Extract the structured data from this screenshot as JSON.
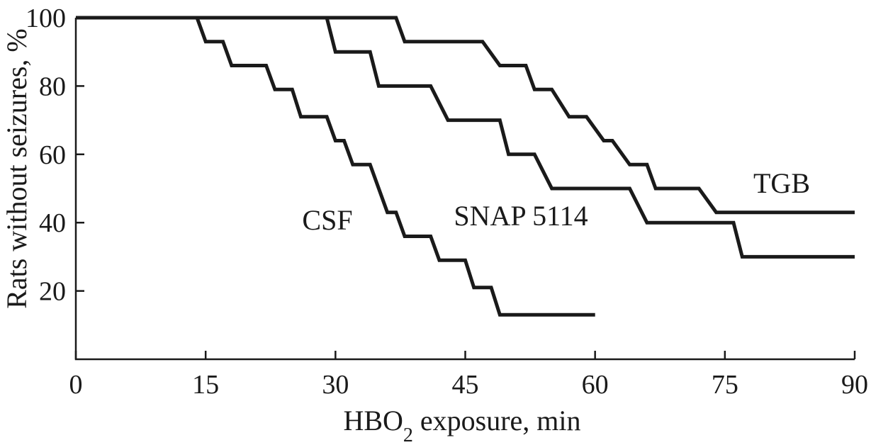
{
  "chart_data": {
    "type": "line",
    "xlabel": {
      "pre": "HBO",
      "sub": "2",
      "post": " exposure, min"
    },
    "ylabel": "Rats without seizures, %",
    "xlim": [
      0,
      90
    ],
    "ylim": [
      0,
      100
    ],
    "xticks": [
      0,
      15,
      30,
      45,
      60,
      75,
      90
    ],
    "yticks": [
      20,
      40,
      60,
      80,
      100
    ],
    "grid": false,
    "series": [
      {
        "name": "CSF",
        "points": [
          [
            0,
            100
          ],
          [
            14,
            100
          ],
          [
            15,
            93
          ],
          [
            17,
            93
          ],
          [
            18,
            86
          ],
          [
            22,
            86
          ],
          [
            23,
            79
          ],
          [
            25,
            79
          ],
          [
            26,
            71
          ],
          [
            29,
            71
          ],
          [
            30,
            64
          ],
          [
            31,
            64
          ],
          [
            32,
            57
          ],
          [
            34,
            57
          ],
          [
            36,
            43
          ],
          [
            37,
            43
          ],
          [
            38,
            36
          ],
          [
            41,
            36
          ],
          [
            42,
            29
          ],
          [
            45,
            29
          ],
          [
            46,
            21
          ],
          [
            48,
            21
          ],
          [
            49,
            13
          ],
          [
            60,
            13
          ]
        ]
      },
      {
        "name": "SNAP 5114",
        "points": [
          [
            0,
            100
          ],
          [
            29,
            100
          ],
          [
            30,
            90
          ],
          [
            34,
            90
          ],
          [
            35,
            80
          ],
          [
            41,
            80
          ],
          [
            43,
            70
          ],
          [
            49,
            70
          ],
          [
            50,
            60
          ],
          [
            53,
            60
          ],
          [
            55,
            50
          ],
          [
            64,
            50
          ],
          [
            66,
            40
          ],
          [
            76,
            40
          ],
          [
            77,
            30
          ],
          [
            90,
            30
          ]
        ]
      },
      {
        "name": "TGB",
        "points": [
          [
            0,
            100
          ],
          [
            37,
            100
          ],
          [
            38,
            93
          ],
          [
            47,
            93
          ],
          [
            49,
            86
          ],
          [
            52,
            86
          ],
          [
            53,
            79
          ],
          [
            55,
            79
          ],
          [
            57,
            71
          ],
          [
            59,
            71
          ],
          [
            61,
            64
          ],
          [
            62,
            64
          ],
          [
            64,
            57
          ],
          [
            66,
            57
          ],
          [
            67,
            50
          ],
          [
            72,
            50
          ],
          [
            74,
            43
          ],
          [
            90,
            43
          ]
        ]
      }
    ]
  }
}
